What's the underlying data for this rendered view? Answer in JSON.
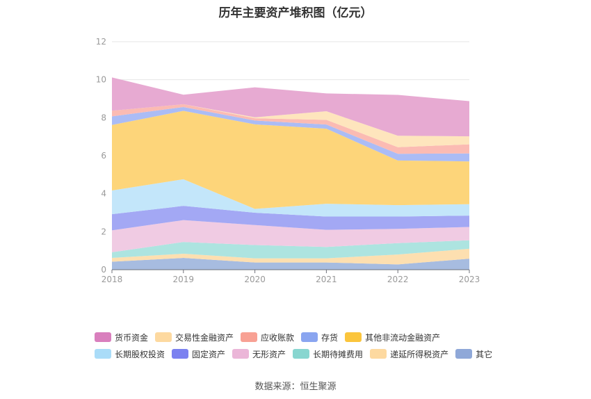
{
  "chart_data": {
    "type": "area",
    "stacked": true,
    "title": "历年主要资产堆积图（亿元）",
    "categories": [
      "2018",
      "2019",
      "2020",
      "2021",
      "2022",
      "2023"
    ],
    "ylim": [
      0,
      12
    ],
    "yticks": [
      0,
      2,
      4,
      6,
      8,
      10,
      12
    ],
    "grid": true,
    "legend_position": "bottom",
    "series": [
      {
        "name": "其它",
        "color": "#a7bce0",
        "values": [
          0.42,
          0.62,
          0.38,
          0.38,
          0.28,
          0.58
        ]
      },
      {
        "name": "递延所得税资产",
        "color": "#fddfb0",
        "values": [
          0.2,
          0.22,
          0.22,
          0.22,
          0.52,
          0.52
        ]
      },
      {
        "name": "长期待摊费用",
        "color": "#ade4e0",
        "values": [
          0.3,
          0.62,
          0.7,
          0.6,
          0.6,
          0.45
        ]
      },
      {
        "name": "无形资产",
        "color": "#f0cbe3",
        "values": [
          1.15,
          1.15,
          1.05,
          0.9,
          0.75,
          0.7
        ]
      },
      {
        "name": "固定资产",
        "color": "#a3a8f4",
        "values": [
          0.85,
          0.75,
          0.65,
          0.7,
          0.65,
          0.6
        ]
      },
      {
        "name": "长期股权投资",
        "color": "#c3e6fa",
        "values": [
          1.25,
          1.4,
          0.2,
          0.67,
          0.6,
          0.6
        ]
      },
      {
        "name": "其他非流动金融资产",
        "color": "#fdd57a",
        "values": [
          3.45,
          3.6,
          4.45,
          3.95,
          2.35,
          2.25
        ]
      },
      {
        "name": "存货",
        "color": "#abbcf5",
        "values": [
          0.45,
          0.2,
          0.2,
          0.22,
          0.35,
          0.42
        ]
      },
      {
        "name": "应收账款",
        "color": "#fbbbb3",
        "values": [
          0.3,
          0.15,
          0.12,
          0.25,
          0.35,
          0.48
        ]
      },
      {
        "name": "交易性金融资产",
        "color": "#fee5bd",
        "values": [
          0,
          0,
          0.05,
          0.45,
          0.6,
          0.42
        ]
      },
      {
        "name": "货币资金",
        "color": "#e7aad2",
        "values": [
          1.75,
          0.5,
          1.58,
          0.94,
          2.15,
          1.85
        ]
      }
    ]
  },
  "legend": {
    "rows": [
      [
        {
          "name": "货币资金",
          "color": "#d97fbd"
        },
        {
          "name": "交易性金融资产",
          "color": "#fdd9a0"
        },
        {
          "name": "应收账款",
          "color": "#f8a194"
        },
        {
          "name": "存货",
          "color": "#8aa5f0"
        },
        {
          "name": "其他非流动金融资产",
          "color": "#fbc53c"
        }
      ],
      [
        {
          "name": "长期股权投资",
          "color": "#aadcf8"
        },
        {
          "name": "固定资产",
          "color": "#7b81f0"
        },
        {
          "name": "无形资产",
          "color": "#ebb6d8"
        },
        {
          "name": "长期待摊费用",
          "color": "#88d6d0"
        },
        {
          "name": "递延所得税资产",
          "color": "#fdd9a0"
        },
        {
          "name": "其它",
          "color": "#8fa8d8"
        }
      ]
    ]
  },
  "source": "数据来源：恒生聚源"
}
